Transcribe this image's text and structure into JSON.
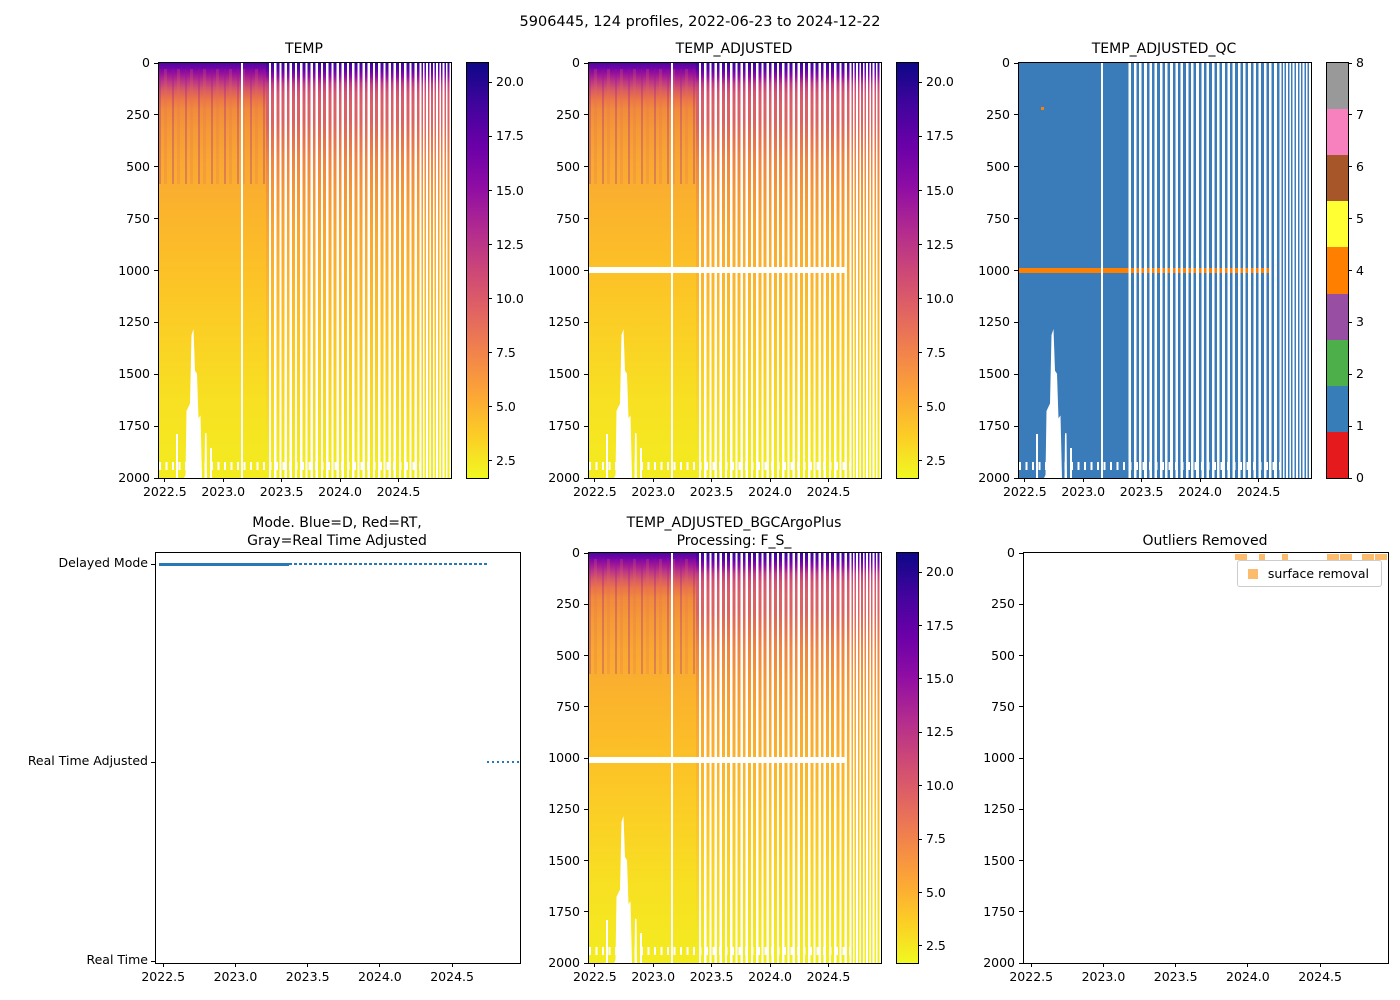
{
  "figure": {
    "suptitle": "5906445, 124 profiles, 2022-06-23 to 2024-12-22",
    "background": "#ffffff"
  },
  "colors": {
    "qc_blue": "#3a7cba",
    "qc_flag_orange": "#ff7f00",
    "mode_dot_blue": "#2878b5",
    "outlier_orange": "#fdbb6d",
    "spine": "#000000",
    "heat_surface_purple": "#4a07a0",
    "heat_deep_yellow": "#f3ec20"
  },
  "chart_data": [
    {
      "id": "temp",
      "type": "heatmap",
      "title": "TEMP",
      "x_range": [
        2022.45,
        2024.95
      ],
      "x_ticks": [
        "2022.5",
        "2023.0",
        "2023.5",
        "2024.0",
        "2024.5"
      ],
      "y_range": [
        0,
        2000
      ],
      "y_ticks": [
        "0",
        "250",
        "500",
        "750",
        "1000",
        "1250",
        "1500",
        "1750",
        "2000"
      ],
      "y_inverted": true,
      "colorbar": {
        "cmap": "plasma_r",
        "vmin": 1.7,
        "vmax": 20.9,
        "ticks": [
          "20.0",
          "17.5",
          "15.0",
          "12.5",
          "10.0",
          "7.5",
          "5.0",
          "2.5"
        ]
      },
      "profile": {
        "depths": [
          0,
          50,
          100,
          150,
          250,
          500,
          750,
          1000,
          1250,
          1500,
          1750,
          2000
        ],
        "temp_2022_5_to_2023_4": [
          17.5,
          13.0,
          9.0,
          7.5,
          6.5,
          5.5,
          4.8,
          4.2,
          3.7,
          3.2,
          2.9,
          2.6
        ],
        "temp_2023_4_to_2025_0": [
          19.5,
          12.0,
          10.5,
          10.0,
          9.0,
          6.5,
          5.2,
          4.3,
          3.7,
          3.2,
          2.9,
          2.6
        ]
      },
      "gaps": {
        "vertical_gap_year": 2023.15,
        "sparse_sampling_after": 2023.37,
        "deep_gap_years": [
          2022.72,
          2022.87
        ],
        "deep_gap_shallowest_depth": 1300
      }
    },
    {
      "id": "temp_adjusted",
      "type": "heatmap",
      "title": "TEMP_ADJUSTED",
      "x_range": [
        2022.45,
        2024.95
      ],
      "x_ticks": [
        "2022.5",
        "2023.0",
        "2023.5",
        "2024.0",
        "2024.5"
      ],
      "y_range": [
        0,
        2000
      ],
      "y_ticks": [
        "0",
        "250",
        "500",
        "750",
        "1000",
        "1250",
        "1500",
        "1750",
        "2000"
      ],
      "y_inverted": true,
      "colorbar": {
        "cmap": "plasma_r",
        "vmin": 1.7,
        "vmax": 20.9,
        "ticks": [
          "20.0",
          "17.5",
          "15.0",
          "12.5",
          "10.0",
          "7.5",
          "5.0",
          "2.5"
        ]
      },
      "masked_band": {
        "depth_range": [
          1000,
          1030
        ],
        "year_range": [
          2022.47,
          2024.75
        ]
      },
      "gaps": {
        "vertical_gap_year": 2023.15,
        "sparse_sampling_after": 2023.37,
        "deep_gap_years": [
          2022.72,
          2022.87
        ],
        "deep_gap_shallowest_depth": 1300
      }
    },
    {
      "id": "temp_adjusted_qc",
      "type": "heatmap-discrete",
      "title": "TEMP_ADJUSTED_QC",
      "x_range": [
        2022.45,
        2024.95
      ],
      "x_ticks": [
        "2022.5",
        "2023.0",
        "2023.5",
        "2024.0",
        "2024.5"
      ],
      "y_range": [
        0,
        2000
      ],
      "y_ticks": [
        "0",
        "250",
        "500",
        "750",
        "1000",
        "1250",
        "1500",
        "1750",
        "2000"
      ],
      "y_inverted": true,
      "colorbar": {
        "ticks": [
          "8",
          "7",
          "6",
          "5",
          "4",
          "3",
          "2",
          "1",
          "0"
        ],
        "palette": {
          "0": "#e41a1c",
          "1": "#377eb8",
          "2": "#4daf4a",
          "3": "#984ea3",
          "4": "#ff7f00",
          "5": "#ffff33",
          "6": "#a65628",
          "7": "#f781bf",
          "8": "#999999"
        }
      },
      "qc_values": {
        "dominant_flag": 1,
        "flag4_band": {
          "depth_range": [
            1000,
            1030
          ],
          "year_range": [
            2022.47,
            2024.75
          ]
        },
        "flag4_point": {
          "year": 2022.65,
          "depth": 215
        }
      }
    },
    {
      "id": "mode",
      "type": "scatter",
      "title_lines": [
        "Mode. Blue=D, Red=RT,",
        "Gray=Real Time Adjusted"
      ],
      "categories": [
        "Delayed Mode",
        "Real Time Adjusted",
        "Real Time"
      ],
      "x_range": [
        2022.45,
        2024.97
      ],
      "x_ticks": [
        "2022.5",
        "2023.0",
        "2023.5",
        "2024.0",
        "2024.5"
      ],
      "series": [
        {
          "name": "Delayed Mode",
          "row": 0,
          "segments": [
            {
              "from": 2022.47,
              "to": 2023.37,
              "style": "solid"
            },
            {
              "from": 2023.37,
              "to": 2024.72,
              "style": "dotted"
            }
          ]
        },
        {
          "name": "Real Time Adjusted",
          "row": 1,
          "segments": [
            {
              "from": 2024.74,
              "to": 2024.96,
              "style": "dotted"
            }
          ]
        },
        {
          "name": "Real Time",
          "row": 2,
          "segments": []
        }
      ]
    },
    {
      "id": "bgc",
      "type": "heatmap",
      "title_lines": [
        "TEMP_ADJUSTED_BGCArgoPlus",
        "Processing: F_S_"
      ],
      "x_range": [
        2022.45,
        2024.95
      ],
      "x_ticks": [
        "2022.5",
        "2023.0",
        "2023.5",
        "2024.0",
        "2024.5"
      ],
      "y_range": [
        0,
        2000
      ],
      "y_ticks": [
        "0",
        "250",
        "500",
        "750",
        "1000",
        "1250",
        "1500",
        "1750",
        "2000"
      ],
      "y_inverted": true,
      "colorbar": {
        "cmap": "plasma_r",
        "vmin": 1.7,
        "vmax": 20.9,
        "ticks": [
          "20.0",
          "17.5",
          "15.0",
          "12.5",
          "10.0",
          "7.5",
          "5.0",
          "2.5"
        ]
      },
      "masked_band": {
        "depth_range": [
          1000,
          1030
        ],
        "year_range": [
          2022.47,
          2024.78
        ]
      }
    },
    {
      "id": "outliers",
      "type": "scatter",
      "title": "Outliers Removed",
      "legend_label": "surface removal",
      "x_range": [
        2022.45,
        2024.97
      ],
      "x_ticks": [
        "2022.5",
        "2023.0",
        "2023.5",
        "2024.0",
        "2024.5"
      ],
      "y_range": [
        0,
        2000
      ],
      "y_ticks": [
        "0",
        "250",
        "500",
        "750",
        "1000",
        "1250",
        "1500",
        "1750",
        "2000"
      ],
      "y_inverted": true,
      "marker_depth": 5,
      "marker_years": [
        2023.93,
        2023.97,
        2024.1,
        2024.26,
        2024.57,
        2024.61,
        2024.66,
        2024.7,
        2024.81,
        2024.85,
        2024.9,
        2024.94
      ]
    }
  ]
}
